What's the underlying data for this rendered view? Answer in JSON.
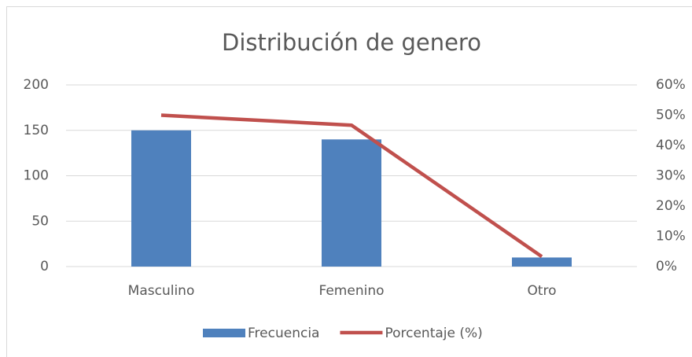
{
  "chart_data": {
    "type": "combo",
    "title": "Distribución de genero",
    "categories": [
      "Masculino",
      "Femenino",
      "Otro"
    ],
    "series": [
      {
        "name": "Frecuencia",
        "type": "bar",
        "color": "#4f81bd",
        "values": [
          150,
          140,
          10
        ]
      },
      {
        "name": "Porcentaje (%)",
        "type": "line",
        "axis": "y2",
        "color": "#c0504d",
        "values": [
          50,
          46.7,
          3.3
        ]
      }
    ],
    "ylim": [
      0,
      200
    ],
    "yticks": [
      0,
      50,
      100,
      150,
      200
    ],
    "y2lim": [
      0,
      60
    ],
    "y2ticks": [
      {
        "value": 0,
        "label": "0%"
      },
      {
        "value": 10,
        "label": "10%"
      },
      {
        "value": 20,
        "label": "20%"
      },
      {
        "value": 30,
        "label": "30%"
      },
      {
        "value": 40,
        "label": "40%"
      },
      {
        "value": 50,
        "label": "50%"
      },
      {
        "value": 60,
        "label": "60%"
      }
    ],
    "grid": true,
    "legend": "bottom"
  }
}
